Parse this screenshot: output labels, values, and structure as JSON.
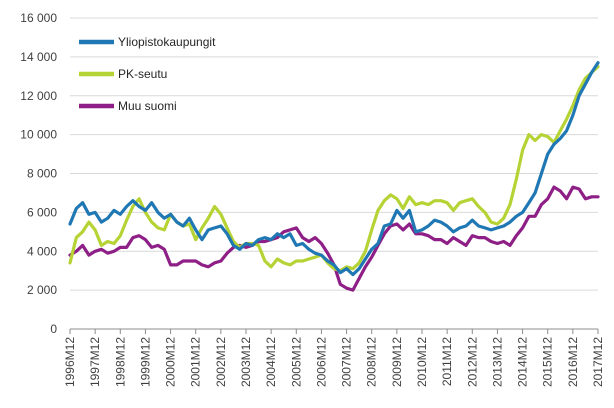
{
  "chart_data": {
    "type": "line",
    "title": "",
    "xlabel": "",
    "ylabel": "",
    "ylim": [
      0,
      16000
    ],
    "y_ticks": [
      0,
      2000,
      4000,
      6000,
      8000,
      10000,
      12000,
      14000,
      16000
    ],
    "y_tick_labels": [
      "0",
      "2 000",
      "4 000",
      "6 000",
      "8 000",
      "10 000",
      "12 000",
      "14 000",
      "16 000"
    ],
    "x_tick_labels": [
      "1996M12",
      "1997M12",
      "1998M12",
      "1999M12",
      "2000M12",
      "2001M12",
      "2002M12",
      "2003M12",
      "2004M12",
      "2005M12",
      "2006M12",
      "2007M12",
      "2008M12",
      "2009M12",
      "2010M12",
      "2011M12",
      "2012M12",
      "2013M12",
      "2014M12",
      "2015M12",
      "2016M12",
      "2017M12"
    ],
    "grid": "horizontal",
    "legend_position": "top-left",
    "x_note": "x values are years; each series is sampled every 3 months from 1996M12",
    "x_start": 1996.917,
    "x_step": 0.25,
    "x_end": 2017.917,
    "series": [
      {
        "name": "Yliopistokaupungit",
        "color": "#1F77B4",
        "values": [
          5400,
          6200,
          6500,
          5900,
          6000,
          5500,
          5700,
          6100,
          5900,
          6300,
          6600,
          6300,
          6100,
          6500,
          6000,
          5700,
          5900,
          5500,
          5300,
          5700,
          5100,
          4600,
          5100,
          5200,
          5300,
          4900,
          4300,
          4100,
          4400,
          4300,
          4600,
          4700,
          4600,
          4900,
          4700,
          4900,
          4300,
          4400,
          4100,
          3900,
          3800,
          3500,
          3300,
          2900,
          3100,
          2800,
          3100,
          3600,
          4100,
          4400,
          5300,
          5400,
          6100,
          5700,
          6100,
          5000,
          5100,
          5300,
          5600,
          5500,
          5300,
          5000,
          5200,
          5300,
          5600,
          5300,
          5200,
          5100,
          5200,
          5300,
          5500,
          5800,
          6000,
          6500,
          7000,
          8000,
          9000,
          9500,
          9800,
          10200,
          11000,
          12000,
          12600,
          13200,
          13700
        ]
      },
      {
        "name": "PK-seutu",
        "color": "#B5D334",
        "values": [
          3400,
          4700,
          5000,
          5500,
          5100,
          4300,
          4500,
          4400,
          4800,
          5600,
          6300,
          6700,
          6000,
          5500,
          5200,
          5100,
          5900,
          5500,
          5300,
          5400,
          4600,
          5200,
          5700,
          6300,
          5900,
          5200,
          4500,
          4200,
          4400,
          4400,
          4300,
          3500,
          3200,
          3600,
          3400,
          3300,
          3500,
          3500,
          3600,
          3700,
          3800,
          3400,
          3100,
          3000,
          3200,
          3100,
          3400,
          4000,
          5100,
          6100,
          6600,
          6900,
          6700,
          6200,
          6800,
          6400,
          6500,
          6400,
          6600,
          6600,
          6500,
          6100,
          6500,
          6600,
          6700,
          6300,
          6000,
          5500,
          5400,
          5700,
          6400,
          7700,
          9200,
          10000,
          9700,
          10000,
          9900,
          9600,
          10200,
          10800,
          11500,
          12300,
          12900,
          13200,
          13500
        ]
      },
      {
        "name": "Muu suomi",
        "color": "#8E1F87",
        "values": [
          3800,
          4000,
          4300,
          3800,
          4000,
          4100,
          3900,
          4000,
          4200,
          4200,
          4700,
          4800,
          4600,
          4200,
          4300,
          4100,
          3300,
          3300,
          3500,
          3500,
          3500,
          3300,
          3200,
          3400,
          3500,
          3900,
          4200,
          4300,
          4200,
          4300,
          4500,
          4500,
          4600,
          4700,
          5000,
          5100,
          5200,
          4700,
          4500,
          4700,
          4400,
          3900,
          3300,
          2300,
          2100,
          2000,
          2600,
          3200,
          3700,
          4300,
          4900,
          5300,
          5400,
          5100,
          5400,
          4900,
          4900,
          4800,
          4600,
          4600,
          4400,
          4700,
          4500,
          4300,
          4800,
          4700,
          4700,
          4500,
          4400,
          4500,
          4300,
          4800,
          5200,
          5800,
          5800,
          6400,
          6700,
          7300,
          7100,
          6700,
          7300,
          7200,
          6700,
          6800,
          6800
        ]
      }
    ]
  }
}
